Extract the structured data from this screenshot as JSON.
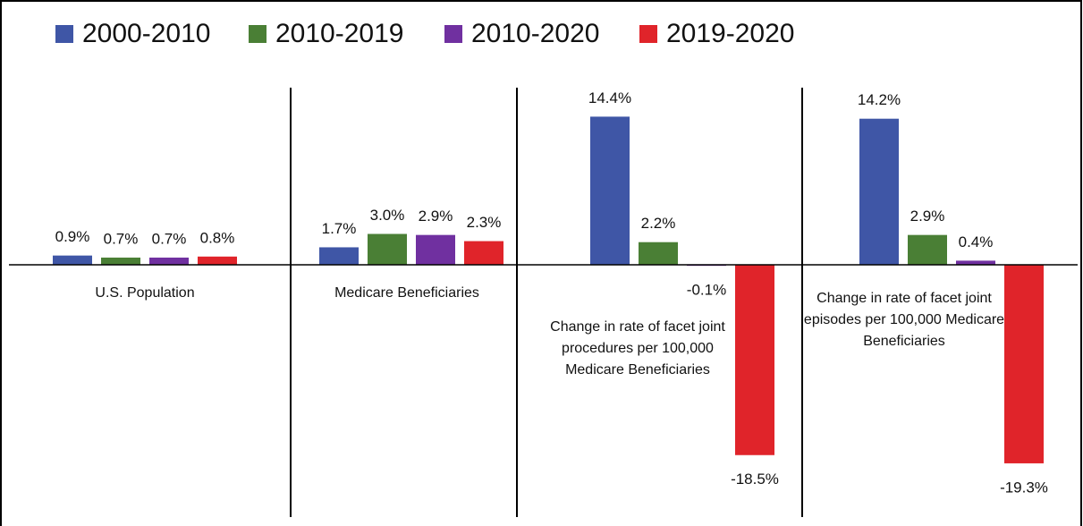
{
  "chart_data": {
    "type": "bar",
    "categories": [
      "U.S. Population",
      "Medicare Beneficiaries",
      "Change in rate of facet joint procedures per 100,000 Medicare Beneficiaries",
      "Change in rate of facet joint episodes per 100,000 Medicare Beneficiaries"
    ],
    "series": [
      {
        "name": "2000-2010",
        "color": "#3f56a6",
        "values": [
          0.9,
          1.7,
          14.4,
          14.2
        ],
        "value_labels": [
          "0.9%",
          "1.7%",
          "14.4%",
          "14.2%"
        ]
      },
      {
        "name": "2010-2019",
        "color": "#4a7f35",
        "values": [
          0.7,
          3.0,
          2.2,
          2.9
        ],
        "value_labels": [
          "0.7%",
          "3.0%",
          "2.2%",
          "2.9%"
        ]
      },
      {
        "name": "2010-2020",
        "color": "#7030a0",
        "values": [
          0.7,
          2.9,
          -0.1,
          0.4
        ],
        "value_labels": [
          "0.7%",
          "2.9%",
          "-0.1%",
          "0.4%"
        ]
      },
      {
        "name": "2019-2020",
        "color": "#e0242a",
        "values": [
          0.8,
          2.3,
          -18.5,
          -19.3
        ],
        "value_labels": [
          "0.8%",
          "2.3%",
          "-18.5%",
          "-19.3%"
        ]
      }
    ],
    "ylim": [
      -22,
      20
    ],
    "legend": "top"
  }
}
